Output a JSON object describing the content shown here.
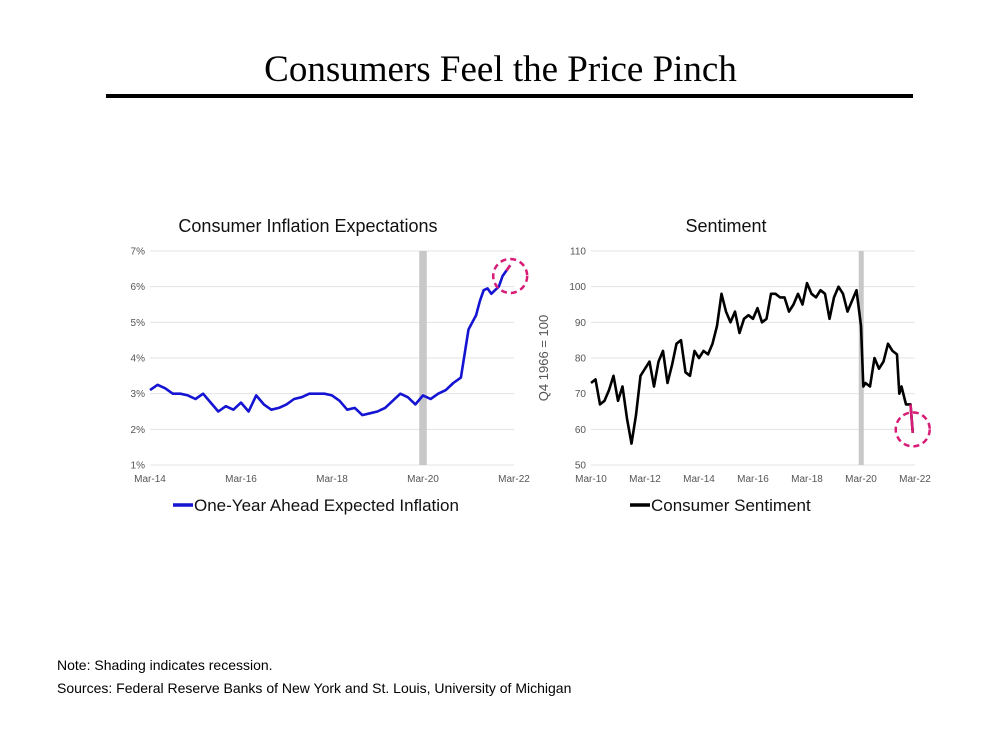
{
  "slide": {
    "title": "Consumers Feel the Price Pinch",
    "note": "Note: Shading indicates recession.",
    "sources": "Sources: Federal Reserve Banks of New York and St. Louis, University of Michigan"
  },
  "colors": {
    "inflation_line": "#1414d2",
    "sentiment_line": "#000000",
    "recession": "#c8c8c8",
    "highlight_circle": "#d81b76",
    "grid": "#e3e3e3",
    "tick_text": "#555555"
  },
  "chart_data": [
    {
      "type": "line",
      "title": "Consumer Inflation Expectations",
      "xlabel": "",
      "ylabel": "",
      "x_ticks": [
        "Mar-14",
        "Mar-16",
        "Mar-18",
        "Mar-20",
        "Mar-22"
      ],
      "y_ticks": [
        "1%",
        "2%",
        "3%",
        "4%",
        "5%",
        "6%",
        "7%"
      ],
      "xlim": [
        "2014-03",
        "2022-03"
      ],
      "ylim": [
        1,
        7
      ],
      "grid": true,
      "legend_position": "bottom",
      "recession": [
        "2020-02",
        "2020-04"
      ],
      "highlight": {
        "x": "2022-02",
        "y": 6.3
      },
      "series": [
        {
          "name": "One-Year Ahead Expected Inflation",
          "x": [
            "2014-03",
            "2014-05",
            "2014-07",
            "2014-09",
            "2014-11",
            "2015-01",
            "2015-03",
            "2015-05",
            "2015-07",
            "2015-09",
            "2015-11",
            "2016-01",
            "2016-03",
            "2016-05",
            "2016-07",
            "2016-09",
            "2016-11",
            "2017-01",
            "2017-03",
            "2017-05",
            "2017-07",
            "2017-09",
            "2017-11",
            "2018-01",
            "2018-03",
            "2018-05",
            "2018-07",
            "2018-09",
            "2018-11",
            "2019-01",
            "2019-03",
            "2019-05",
            "2019-07",
            "2019-09",
            "2019-11",
            "2020-01",
            "2020-03",
            "2020-05",
            "2020-07",
            "2020-09",
            "2020-11",
            "2021-01",
            "2021-03",
            "2021-04",
            "2021-05",
            "2021-06",
            "2021-07",
            "2021-08",
            "2021-09",
            "2021-10",
            "2021-11",
            "2021-12",
            "2022-01",
            "2022-02"
          ],
          "values": [
            3.1,
            3.25,
            3.15,
            3.0,
            3.0,
            2.95,
            2.85,
            3.0,
            2.75,
            2.5,
            2.65,
            2.55,
            2.75,
            2.5,
            2.95,
            2.7,
            2.55,
            2.6,
            2.7,
            2.85,
            2.9,
            3.0,
            3.0,
            3.0,
            2.95,
            2.8,
            2.55,
            2.6,
            2.4,
            2.45,
            2.5,
            2.6,
            2.8,
            3.0,
            2.9,
            2.7,
            2.95,
            2.85,
            3.0,
            3.1,
            3.3,
            3.45,
            4.8,
            5.0,
            5.2,
            5.6,
            5.9,
            5.95,
            5.8,
            5.9,
            6.0,
            6.3,
            6.45,
            6.6
          ]
        }
      ]
    },
    {
      "type": "line",
      "title": "Sentiment",
      "xlabel": "",
      "ylabel": "Q4 1966 = 100",
      "x_ticks": [
        "Mar-10",
        "Mar-12",
        "Mar-14",
        "Mar-16",
        "Mar-18",
        "Mar-20",
        "Mar-22"
      ],
      "y_ticks": [
        "50",
        "60",
        "70",
        "80",
        "90",
        "100",
        "110"
      ],
      "xlim": [
        "2010-03",
        "2022-03"
      ],
      "ylim": [
        50,
        110
      ],
      "grid": true,
      "legend_position": "bottom",
      "recession": [
        "2020-02",
        "2020-04"
      ],
      "highlight": {
        "x": "2022-02",
        "y": 60
      },
      "series": [
        {
          "name": "Consumer Sentiment",
          "x": [
            "2010-03",
            "2010-05",
            "2010-07",
            "2010-09",
            "2010-11",
            "2011-01",
            "2011-03",
            "2011-05",
            "2011-07",
            "2011-09",
            "2011-11",
            "2012-01",
            "2012-03",
            "2012-05",
            "2012-07",
            "2012-09",
            "2012-11",
            "2013-01",
            "2013-03",
            "2013-05",
            "2013-07",
            "2013-09",
            "2013-11",
            "2014-01",
            "2014-03",
            "2014-05",
            "2014-07",
            "2014-09",
            "2014-11",
            "2015-01",
            "2015-03",
            "2015-05",
            "2015-07",
            "2015-09",
            "2015-11",
            "2016-01",
            "2016-03",
            "2016-05",
            "2016-07",
            "2016-09",
            "2016-11",
            "2017-01",
            "2017-03",
            "2017-05",
            "2017-07",
            "2017-09",
            "2017-11",
            "2018-01",
            "2018-03",
            "2018-05",
            "2018-07",
            "2018-09",
            "2018-11",
            "2019-01",
            "2019-03",
            "2019-05",
            "2019-07",
            "2019-09",
            "2019-11",
            "2020-01",
            "2020-03",
            "2020-04",
            "2020-05",
            "2020-07",
            "2020-09",
            "2020-11",
            "2021-01",
            "2021-03",
            "2021-05",
            "2021-07",
            "2021-08",
            "2021-09",
            "2021-11",
            "2022-01",
            "2022-02"
          ],
          "values": [
            73,
            74,
            67,
            68,
            71,
            75,
            68,
            72,
            63,
            56,
            64,
            75,
            77,
            79,
            72,
            79,
            82,
            73,
            78,
            84,
            85,
            76,
            75,
            82,
            80,
            82,
            81,
            84,
            89,
            98,
            93,
            90,
            93,
            87,
            91,
            92,
            91,
            94,
            90,
            91,
            98,
            98,
            97,
            97,
            93,
            95,
            98,
            95,
            101,
            98,
            97,
            99,
            98,
            91,
            97,
            100,
            98,
            93,
            96,
            99,
            89,
            72,
            73,
            72,
            80,
            77,
            79,
            84,
            82,
            81,
            70,
            72,
            67,
            67,
            59
          ]
        }
      ]
    }
  ]
}
